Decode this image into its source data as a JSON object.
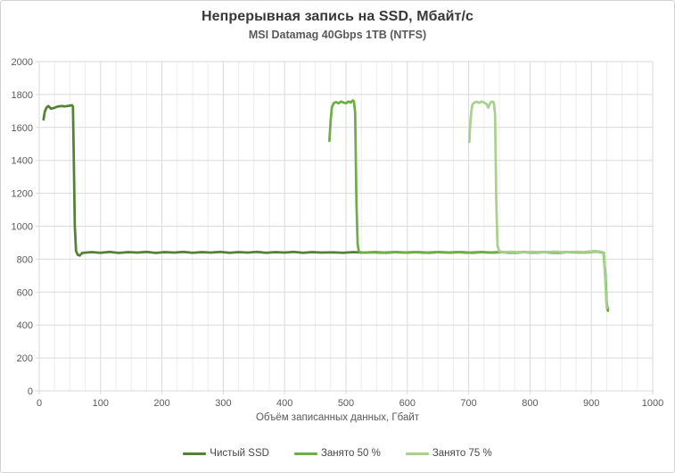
{
  "chart_data": {
    "type": "line",
    "title": "Непрерывная запись на SSD, Мбайт/с",
    "subtitle": "MSI Datamag 40Gbps 1TB (NTFS)",
    "xlabel": "Объём записанных данных, Гбайт",
    "ylabel": "",
    "xlim": [
      0,
      1000
    ],
    "ylim": [
      0,
      2000
    ],
    "x_ticks": [
      0,
      100,
      200,
      300,
      400,
      500,
      600,
      700,
      800,
      900,
      1000
    ],
    "y_ticks": [
      0,
      200,
      400,
      600,
      800,
      1000,
      1200,
      1400,
      1600,
      1800,
      2000
    ],
    "x_minor_step": 25,
    "grid": true,
    "legend_position": "bottom",
    "colors": {
      "grid_major": "#d9d9d9",
      "grid_minor": "#ececec",
      "plot_border": "#d9d9d9",
      "tick": "#d9d9d9"
    },
    "series": [
      {
        "name": "Чистый SSD",
        "color": "#538135",
        "points": [
          [
            7,
            1648
          ],
          [
            9,
            1695
          ],
          [
            12,
            1722
          ],
          [
            15,
            1730
          ],
          [
            19,
            1714
          ],
          [
            24,
            1718
          ],
          [
            30,
            1727
          ],
          [
            36,
            1730
          ],
          [
            42,
            1728
          ],
          [
            48,
            1731
          ],
          [
            53,
            1735
          ],
          [
            55,
            1728
          ],
          [
            56,
            1500
          ],
          [
            58,
            1000
          ],
          [
            60,
            848
          ],
          [
            63,
            826
          ],
          [
            66,
            822
          ],
          [
            70,
            838
          ],
          [
            85,
            843
          ],
          [
            100,
            839
          ],
          [
            115,
            844
          ],
          [
            130,
            838
          ],
          [
            145,
            843
          ],
          [
            160,
            840
          ],
          [
            175,
            844
          ],
          [
            190,
            838
          ],
          [
            205,
            843
          ],
          [
            220,
            840
          ],
          [
            235,
            844
          ],
          [
            250,
            839
          ],
          [
            265,
            843
          ],
          [
            280,
            840
          ],
          [
            295,
            844
          ],
          [
            310,
            839
          ],
          [
            325,
            843
          ],
          [
            340,
            840
          ],
          [
            355,
            844
          ],
          [
            370,
            839
          ],
          [
            385,
            843
          ],
          [
            400,
            840
          ],
          [
            415,
            844
          ],
          [
            430,
            839
          ],
          [
            445,
            843
          ],
          [
            460,
            840
          ],
          [
            478,
            842
          ],
          [
            495,
            839
          ],
          [
            512,
            843
          ],
          [
            530,
            840
          ],
          [
            548,
            843
          ],
          [
            565,
            839
          ],
          [
            582,
            843
          ],
          [
            600,
            840
          ],
          [
            618,
            843
          ],
          [
            635,
            839
          ],
          [
            652,
            843
          ],
          [
            670,
            840
          ],
          [
            688,
            843
          ],
          [
            705,
            839
          ],
          [
            722,
            843
          ],
          [
            740,
            840
          ],
          [
            758,
            843
          ],
          [
            775,
            839
          ],
          [
            792,
            843
          ],
          [
            810,
            840
          ],
          [
            828,
            843
          ],
          [
            845,
            839
          ],
          [
            862,
            843
          ],
          [
            880,
            841
          ],
          [
            895,
            845
          ],
          [
            905,
            848
          ],
          [
            912,
            845
          ],
          [
            917,
            841
          ],
          [
            920,
            838
          ],
          [
            923,
            700
          ],
          [
            925,
            530
          ],
          [
            927,
            490
          ]
        ]
      },
      {
        "name": "Занято 50 %",
        "color": "#70AD47",
        "points": [
          [
            473,
            1518
          ],
          [
            475,
            1640
          ],
          [
            477,
            1722
          ],
          [
            480,
            1748
          ],
          [
            484,
            1754
          ],
          [
            488,
            1747
          ],
          [
            492,
            1757
          ],
          [
            496,
            1751
          ],
          [
            500,
            1747
          ],
          [
            504,
            1757
          ],
          [
            508,
            1752
          ],
          [
            511,
            1764
          ],
          [
            513,
            1758
          ],
          [
            515,
            1690
          ],
          [
            517,
            1150
          ],
          [
            519,
            890
          ],
          [
            521,
            848
          ],
          [
            524,
            840
          ],
          [
            540,
            842
          ],
          [
            558,
            839
          ],
          [
            575,
            843
          ],
          [
            592,
            840
          ],
          [
            610,
            843
          ],
          [
            628,
            839
          ],
          [
            645,
            843
          ],
          [
            662,
            840
          ],
          [
            680,
            843
          ],
          [
            698,
            839
          ],
          [
            715,
            843
          ],
          [
            732,
            840
          ],
          [
            750,
            843
          ],
          [
            768,
            839
          ],
          [
            785,
            843
          ],
          [
            802,
            840
          ],
          [
            820,
            843
          ],
          [
            838,
            839
          ],
          [
            855,
            843
          ],
          [
            872,
            841
          ],
          [
            890,
            840
          ],
          [
            902,
            844
          ],
          [
            910,
            846
          ],
          [
            916,
            842
          ],
          [
            920,
            837
          ],
          [
            923,
            680
          ],
          [
            925,
            520
          ],
          [
            927,
            486
          ]
        ]
      },
      {
        "name": "Занято 75 %",
        "color": "#A9D08E",
        "points": [
          [
            701,
            1512
          ],
          [
            702,
            1590
          ],
          [
            704,
            1690
          ],
          [
            706,
            1738
          ],
          [
            709,
            1750
          ],
          [
            713,
            1756
          ],
          [
            717,
            1749
          ],
          [
            721,
            1757
          ],
          [
            725,
            1752
          ],
          [
            729,
            1742
          ],
          [
            732,
            1720
          ],
          [
            735,
            1748
          ],
          [
            738,
            1757
          ],
          [
            741,
            1752
          ],
          [
            743,
            1680
          ],
          [
            745,
            1150
          ],
          [
            747,
            880
          ],
          [
            750,
            848
          ],
          [
            755,
            843
          ],
          [
            770,
            845
          ],
          [
            788,
            841
          ],
          [
            805,
            845
          ],
          [
            822,
            842
          ],
          [
            840,
            846
          ],
          [
            858,
            842
          ],
          [
            875,
            845
          ],
          [
            890,
            843
          ],
          [
            900,
            847
          ],
          [
            908,
            849
          ],
          [
            914,
            846
          ],
          [
            918,
            843
          ],
          [
            921,
            820
          ],
          [
            923,
            650
          ],
          [
            925,
            505
          ]
        ]
      }
    ]
  }
}
